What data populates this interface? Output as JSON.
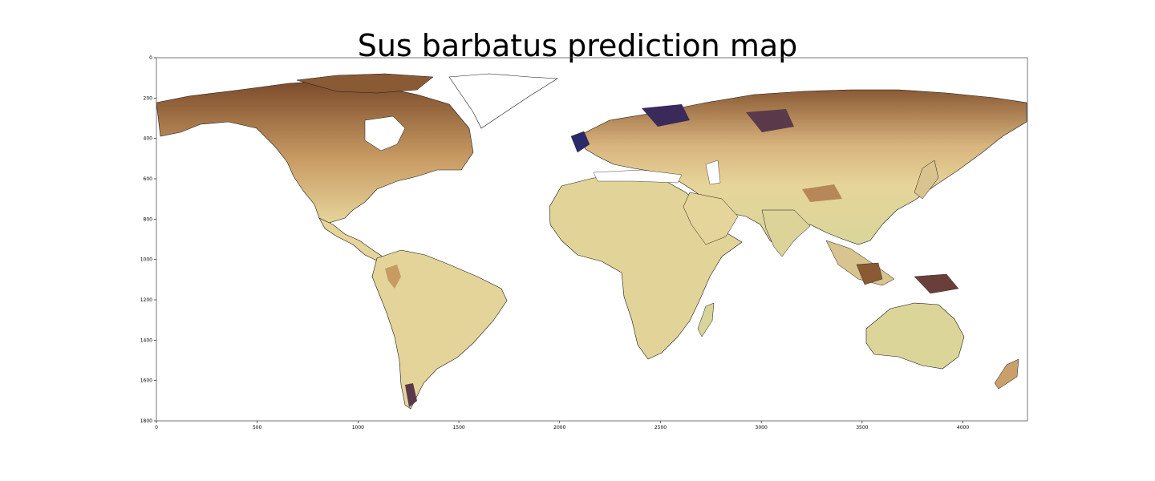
{
  "title": "Sus barbatus prediction map",
  "axes": {
    "x_ticks": [
      0,
      500,
      1000,
      1500,
      2000,
      2500,
      3000,
      3500,
      4000
    ],
    "y_ticks": [
      0,
      200,
      400,
      600,
      800,
      1000,
      1200,
      1400,
      1600,
      1800
    ],
    "x_range": [
      0,
      4320
    ],
    "y_range": [
      0,
      1800
    ],
    "y_inverted": true
  },
  "colors": {
    "land_low": "#e6d59a",
    "land_green": "#cfd494",
    "land_mid": "#c89b63",
    "land_high": "#7a4a2a",
    "land_peak": "#2a2a6a",
    "coast": "#1a1a1a",
    "frame": "#555555"
  }
}
